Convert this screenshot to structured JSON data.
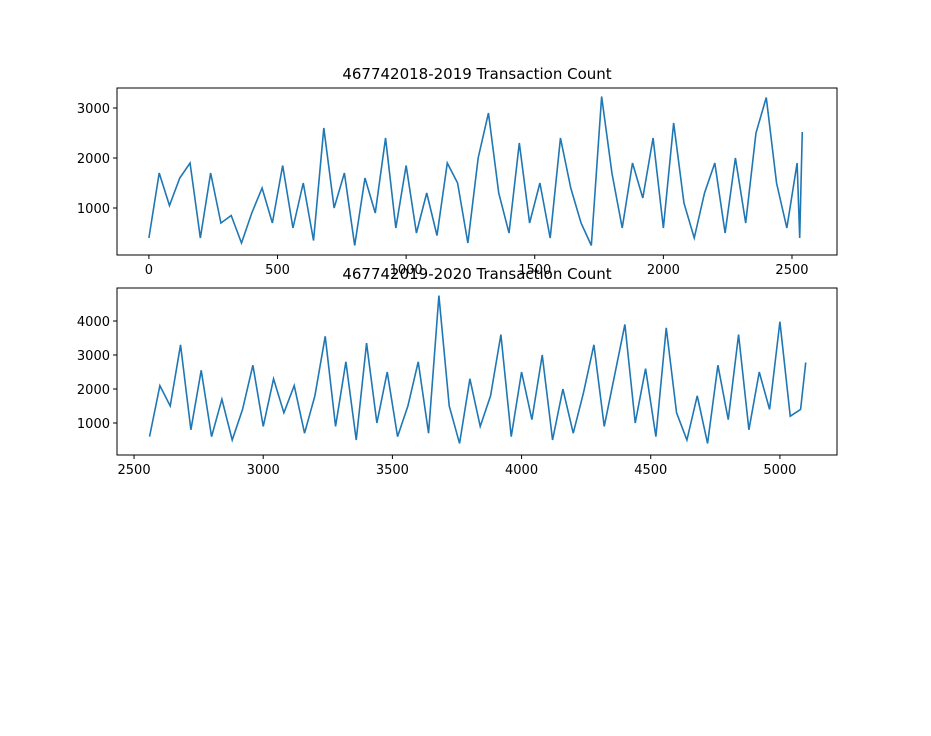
{
  "chart_data": [
    {
      "type": "line",
      "title": "467742018-2019 Transaction Count",
      "x": [
        0,
        40,
        80,
        120,
        160,
        200,
        240,
        280,
        320,
        360,
        400,
        440,
        480,
        520,
        560,
        600,
        640,
        680,
        720,
        760,
        800,
        840,
        880,
        920,
        960,
        1000,
        1040,
        1080,
        1120,
        1160,
        1200,
        1240,
        1280,
        1320,
        1360,
        1400,
        1440,
        1480,
        1520,
        1560,
        1600,
        1640,
        1680,
        1720,
        1760,
        1800,
        1840,
        1880,
        1920,
        1960,
        2000,
        2040,
        2080,
        2120,
        2160,
        2200,
        2240,
        2280,
        2320,
        2360,
        2400,
        2440,
        2480,
        2520,
        2530,
        2540
      ],
      "series": [
        {
          "color": "#1f77b4",
          "values": [
            400,
            1700,
            1050,
            1600,
            1900,
            400,
            1700,
            700,
            850,
            300,
            900,
            1400,
            700,
            1850,
            600,
            1500,
            350,
            2600,
            1000,
            1700,
            250,
            1600,
            900,
            2400,
            600,
            1850,
            500,
            1300,
            450,
            1900,
            1500,
            300,
            2000,
            2900,
            1300,
            500,
            2300,
            700,
            1500,
            400,
            2400,
            1400,
            700,
            250,
            3230,
            1700,
            600,
            1900,
            1200,
            2400,
            600,
            2700,
            1100,
            400,
            1300,
            1900,
            500,
            2000,
            700,
            2500,
            3210,
            1500,
            600,
            1900,
            400,
            2520
          ]
        }
      ],
      "xlim": [
        -124,
        2675
      ],
      "ylim": [
        60,
        3400
      ],
      "xticks": [
        0,
        500,
        1000,
        1500,
        2000,
        2500
      ],
      "yticks": [
        1000,
        2000,
        3000
      ]
    },
    {
      "type": "line",
      "title": "467742019-2020 Transaction Count",
      "x": [
        2560,
        2600,
        2640,
        2680,
        2720,
        2760,
        2800,
        2840,
        2880,
        2920,
        2960,
        3000,
        3040,
        3080,
        3120,
        3160,
        3200,
        3240,
        3280,
        3320,
        3360,
        3400,
        3440,
        3480,
        3520,
        3560,
        3600,
        3640,
        3680,
        3720,
        3760,
        3800,
        3840,
        3880,
        3920,
        3960,
        4000,
        4040,
        4080,
        4120,
        4160,
        4200,
        4240,
        4280,
        4320,
        4360,
        4400,
        4440,
        4480,
        4520,
        4560,
        4600,
        4640,
        4680,
        4720,
        4760,
        4800,
        4840,
        4880,
        4920,
        4960,
        5000,
        5040,
        5080,
        5100
      ],
      "series": [
        {
          "color": "#1f77b4",
          "values": [
            600,
            2100,
            1500,
            3300,
            800,
            2550,
            600,
            1700,
            500,
            1400,
            2700,
            900,
            2300,
            1300,
            2100,
            700,
            1800,
            3550,
            900,
            2800,
            500,
            3350,
            1000,
            2500,
            600,
            1500,
            2800,
            700,
            4750,
            1500,
            400,
            2300,
            900,
            1800,
            3600,
            600,
            2500,
            1100,
            3000,
            500,
            2000,
            700,
            1900,
            3300,
            900,
            2400,
            3900,
            1000,
            2600,
            600,
            3800,
            1300,
            500,
            1800,
            400,
            2700,
            1100,
            3600,
            800,
            2500,
            1400,
            3980,
            1200,
            1400,
            2780
          ]
        }
      ],
      "xlim": [
        2434,
        5221
      ],
      "ylim": [
        59,
        4971
      ],
      "xticks": [
        2500,
        3000,
        3500,
        4000,
        4500,
        5000
      ],
      "yticks": [
        1000,
        2000,
        3000,
        4000
      ]
    }
  ]
}
